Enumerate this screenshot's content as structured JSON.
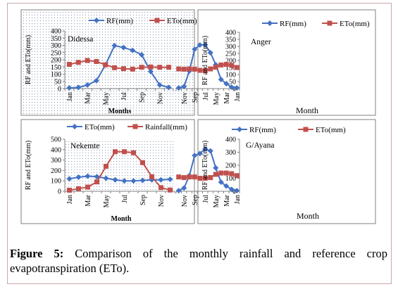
{
  "caption": {
    "label": "Figure 5:",
    "text": " Comparison of the monthly rainfall and reference crop evapotranspiration (ETo)."
  },
  "colors": {
    "rf_blue": "#4472c4",
    "eto_red": "#c0504d",
    "frame": "#7f7f7f",
    "dots": "#1f3864"
  },
  "chart_data": [
    {
      "type": "line",
      "station": "Didessa",
      "legend_position": "top",
      "categories": [
        "Jan",
        "Feb",
        "Mar",
        "Apr",
        "May",
        "Jun",
        "Jul",
        "Aug",
        "Sep",
        "Oct",
        "Nov",
        "Dec"
      ],
      "tick_labels": [
        "Jan",
        "Mar",
        "May",
        "Jul",
        "Sep",
        "Nov"
      ],
      "ylim": [
        0,
        400
      ],
      "yticks": [
        0,
        50,
        100,
        150,
        200,
        250,
        300,
        350,
        400
      ],
      "xlabel": "Months",
      "ylabel": "RF and ETo(mm)",
      "series": [
        {
          "name": "RF(mm)",
          "marker": "diamond",
          "values": [
            5,
            8,
            25,
            55,
            165,
            298,
            285,
            265,
            235,
            118,
            25,
            8
          ]
        },
        {
          "name": "ETo(mm)",
          "marker": "square",
          "values": [
            168,
            182,
            195,
            188,
            165,
            145,
            138,
            135,
            148,
            150,
            148,
            148
          ]
        }
      ]
    },
    {
      "type": "line",
      "station": "Anger",
      "legend_position": "top",
      "categories": [
        "Jan",
        "Feb",
        "Mar",
        "Apr",
        "May",
        "Jun",
        "Jul",
        "Aug",
        "Sep",
        "Oct",
        "Nov",
        "Dec"
      ],
      "tick_labels": [
        "Jan",
        "Mar",
        "May",
        "Jul",
        "Sep",
        "Nov"
      ],
      "ylim": [
        0,
        400
      ],
      "yticks": [
        0,
        50,
        100,
        150,
        200,
        250,
        300,
        350,
        400
      ],
      "xlabel": "Month",
      "ylabel": "RF and ETo(mm)",
      "series": [
        {
          "name": "RF(mm)",
          "marker": "diamond",
          "values": [
            5,
            10,
            35,
            65,
            170,
            255,
            312,
            310,
            280,
            125,
            15,
            5
          ]
        },
        {
          "name": "ETo(mm)",
          "marker": "square",
          "values": [
            150,
            165,
            172,
            168,
            152,
            140,
            128,
            130,
            138,
            140,
            138,
            140
          ]
        }
      ]
    },
    {
      "type": "line",
      "station": "Nekemte",
      "legend_position": "top",
      "categories": [
        "Jan",
        "Feb",
        "Mar",
        "Apr",
        "May",
        "Jun",
        "Jul",
        "Aug",
        "Sep",
        "Oct",
        "Nov",
        "Dec"
      ],
      "tick_labels": [
        "Jan",
        "Mar",
        "May",
        "Jul",
        "Sep",
        "Nov"
      ],
      "ylim": [
        0,
        500
      ],
      "yticks": [
        0,
        100,
        200,
        300,
        400,
        500
      ],
      "xlabel": "Month",
      "ylabel": "RF and ETo(mm)",
      "series": [
        {
          "name": "ETo(mm)",
          "marker": "diamond",
          "values": [
            120,
            135,
            145,
            140,
            125,
            110,
            100,
            100,
            105,
            110,
            110,
            115
          ]
        },
        {
          "name": "Rainfall(mm)",
          "marker": "square",
          "values": [
            10,
            25,
            40,
            90,
            240,
            380,
            380,
            370,
            275,
            140,
            35,
            12
          ]
        }
      ]
    },
    {
      "type": "line",
      "station": "G/Ayana",
      "legend_position": "top",
      "categories": [
        "Jan",
        "Feb",
        "Mar",
        "Apr",
        "May",
        "Jun",
        "Jul",
        "Aug",
        "Sep",
        "Oct",
        "Nov",
        "Dec"
      ],
      "tick_labels": [
        "Jan",
        "Mar",
        "May",
        "Jul",
        "Sep",
        "Nov"
      ],
      "ylim": [
        0,
        400
      ],
      "yticks": [
        0,
        100,
        200,
        300,
        400
      ],
      "xlabel": "Month",
      "ylabel": "RF and ETo(mm)",
      "series": [
        {
          "name": "RF(mm)",
          "marker": "diamond",
          "values": [
            5,
            15,
            40,
            70,
            180,
            310,
            325,
            290,
            275,
            120,
            25,
            5
          ]
        },
        {
          "name": "ETo(mm)",
          "marker": "square",
          "values": [
            120,
            135,
            140,
            140,
            130,
            105,
            100,
            100,
            110,
            110,
            105,
            110
          ]
        }
      ]
    }
  ]
}
